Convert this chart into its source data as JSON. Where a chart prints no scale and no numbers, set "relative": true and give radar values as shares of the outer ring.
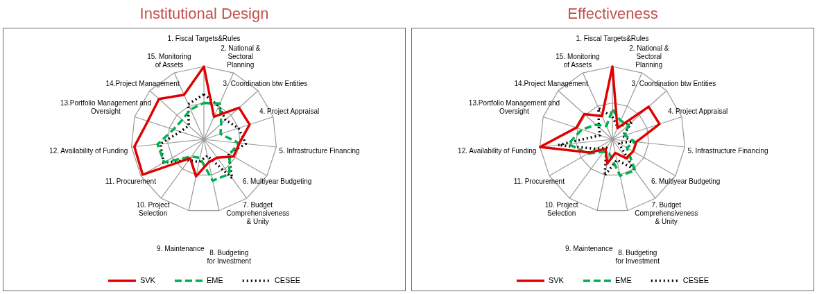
{
  "chart_data": [
    {
      "type": "radar",
      "title": "Institutional Design",
      "relative": true,
      "grid": true,
      "legend": "bottom",
      "marker": "none",
      "categories": [
        "1. Fiscal Targets&Rules",
        "2. National & Sectoral Planning",
        "3. Coordination btw Entities",
        "4. Project Appraisal",
        "5. Infrastructure Financing",
        "6. Multiyear Budgeting",
        "7. Budget Comprehensiveness & Unity",
        "8. Budgeting for Investment",
        "9. Maintenance",
        "10. Project Selection",
        "11. Procurement",
        "12. Availability of Funding",
        "13.Portfolio Management and Oversight",
        "14.Project Management",
        "15. Monitoring of Assets"
      ],
      "series": [
        {
          "name": "SVK",
          "color": "#e00000",
          "line_style": "solid",
          "values": [
            1.0,
            0.34,
            0.65,
            0.66,
            0.49,
            0.47,
            0.31,
            0.32,
            0.52,
            0.32,
            0.97,
            0.96,
            0.81,
            0.83,
            0.67
          ]
        },
        {
          "name": "EME",
          "color": "#00b050",
          "line_style": "dashed",
          "values": [
            0.5,
            0.54,
            0.32,
            0.24,
            0.48,
            0.41,
            0.59,
            0.58,
            0.26,
            0.29,
            0.63,
            0.64,
            0.44,
            0.4,
            0.45
          ]
        },
        {
          "name": "CESEE",
          "color": "#000000",
          "line_style": "dotted",
          "values": [
            0.62,
            0.5,
            0.4,
            0.5,
            0.58,
            0.39,
            0.66,
            0.23,
            0.32,
            0.35,
            0.64,
            0.6,
            0.34,
            0.28,
            0.53
          ]
        }
      ]
    },
    {
      "type": "radar",
      "title": "Effectiveness",
      "relative": true,
      "grid": true,
      "legend": "bottom",
      "marker": "none",
      "categories": [
        "1. Fiscal Targets&Rules",
        "2. National & Sectoral Planning",
        "3. Coordination btw Entities",
        "4. Project Appraisal",
        "5. Infrastructure Financing",
        "6. Multiyear Budgeting",
        "7. Budget Comprehensiveness & Unity",
        "8. Budgeting for Investment",
        "9. Maintenance",
        "10. Project Selection",
        "11. Procurement",
        "12. Availability of Funding",
        "13.Portfolio Management and Oversight",
        "14.Project Management",
        "15. Monitoring of Assets"
      ],
      "series": [
        {
          "name": "SVK",
          "color": "#e00000",
          "line_style": "solid",
          "values": [
            1.0,
            0.17,
            0.67,
            0.68,
            0.33,
            0.33,
            0.32,
            0.19,
            0.34,
            0.16,
            0.36,
            1.0,
            0.52,
            0.52,
            0.35
          ]
        },
        {
          "name": "EME",
          "color": "#00b050",
          "line_style": "dashed",
          "values": [
            0.41,
            0.28,
            0.3,
            0.18,
            0.31,
            0.23,
            0.53,
            0.51,
            0.2,
            0.21,
            0.39,
            0.61,
            0.44,
            0.3,
            0.2
          ]
        },
        {
          "name": "CESEE",
          "color": "#000000",
          "line_style": "dotted",
          "values": [
            0.31,
            0.18,
            0.37,
            0.15,
            0.28,
            0.1,
            0.5,
            0.29,
            0.51,
            0.14,
            0.26,
            0.75,
            0.18,
            0.25,
            0.47
          ]
        }
      ]
    }
  ]
}
